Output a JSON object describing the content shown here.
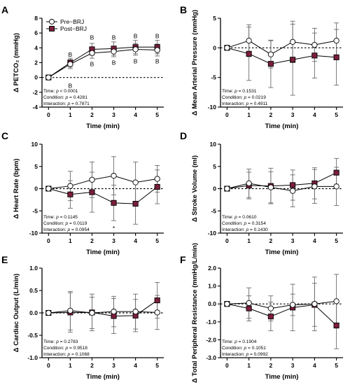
{
  "figure": {
    "colors": {
      "pre_marker_fill": "#ffffff",
      "post_marker_fill": "#7b1e3a",
      "line": "#000000",
      "error_bar": "#6b6b6b"
    },
    "legend": {
      "entries": [
        "Pre−BRJ",
        "Post−BRJ"
      ]
    }
  },
  "chart_data": [
    {
      "panel": "A",
      "type": "line",
      "ylabel": "Δ PETCO₂ (mmHg)",
      "xlabel": "Time (min)",
      "x": [
        0,
        1,
        2,
        3,
        4,
        5
      ],
      "ylim": [
        -4,
        8
      ],
      "yticks": [
        -4,
        -2,
        0,
        2,
        4,
        6,
        8
      ],
      "ytick_labels": [
        "-4",
        "-2",
        "0",
        "2",
        "4",
        "6",
        "8"
      ],
      "series": [
        {
          "name": "Pre−BRJ",
          "values": [
            0,
            1.8,
            3.3,
            3.5,
            3.8,
            3.7
          ],
          "err": [
            0,
            0.6,
            0.7,
            0.7,
            0.8,
            0.8
          ]
        },
        {
          "name": "Post−BRJ",
          "values": [
            0,
            2.0,
            3.8,
            3.9,
            4.1,
            4.1
          ],
          "err": [
            0,
            0.6,
            0.8,
            0.9,
            0.9,
            0.9
          ]
        }
      ],
      "annotations": [
        {
          "text": "B",
          "x": 1,
          "y": 3.1
        },
        {
          "text": "B",
          "x": 1,
          "y": -1.1
        },
        {
          "text": "B",
          "x": 2,
          "y": 5.4
        },
        {
          "text": "B",
          "x": 2,
          "y": 1.8
        },
        {
          "text": "B",
          "x": 3,
          "y": 5.4
        },
        {
          "text": "B",
          "x": 3,
          "y": 2.0
        },
        {
          "text": "B",
          "x": 4,
          "y": 5.6
        },
        {
          "text": "B",
          "x": 4,
          "y": 2.2
        },
        {
          "text": "B",
          "x": 5,
          "y": 5.6
        },
        {
          "text": "B",
          "x": 5,
          "y": 2.2
        }
      ],
      "stats": [
        {
          "label": "Time: ",
          "p": "p",
          "value": " < 0.0001"
        },
        {
          "label": "Condition: ",
          "p": "p",
          "value": " = 0.4281"
        },
        {
          "label": "Interaction: ",
          "p": "p",
          "value": " = 0.7871"
        }
      ]
    },
    {
      "panel": "B",
      "type": "line",
      "ylabel": "Δ Mean Arterial Pressure (mmHg)",
      "xlabel": "Time (min)",
      "x": [
        0,
        1,
        2,
        3,
        4,
        5
      ],
      "ylim": [
        -10,
        5
      ],
      "yticks": [
        -10,
        -5,
        0,
        5
      ],
      "ytick_labels": [
        "-10",
        "-5",
        "0",
        "5"
      ],
      "series": [
        {
          "name": "Pre−BRJ",
          "values": [
            0,
            1.2,
            -1.1,
            1.0,
            0.5,
            1.2
          ],
          "err": [
            0,
            2.7,
            2.3,
            3.5,
            2.8,
            3.0
          ]
        },
        {
          "name": "Post−BRJ",
          "values": [
            0,
            -1.0,
            -2.7,
            -2.0,
            -1.3,
            -1.6
          ],
          "err": [
            0,
            4.5,
            4.0,
            6.0,
            3.8,
            4.7
          ]
        }
      ],
      "annotations": [],
      "stats": [
        {
          "label": "Time: ",
          "p": "p",
          "value": " = 0.1531"
        },
        {
          "label": "Condition: ",
          "p": "p",
          "value": " = 0.0219"
        },
        {
          "label": "Interaction: ",
          "p": "p",
          "value": " = 0.4911"
        }
      ]
    },
    {
      "panel": "C",
      "type": "line",
      "ylabel": "Δ Heart Rate (bpm)",
      "xlabel": "Time (min)",
      "x": [
        0,
        1,
        2,
        3,
        4,
        5
      ],
      "ylim": [
        -10,
        10
      ],
      "yticks": [
        -10,
        -5,
        0,
        5,
        10
      ],
      "ytick_labels": [
        "-10",
        "-5",
        "0",
        "5",
        "10"
      ],
      "series": [
        {
          "name": "Pre−BRJ",
          "values": [
            0,
            0.6,
            2.0,
            2.9,
            1.4,
            2.2
          ],
          "err": [
            0,
            3.3,
            4.0,
            4.3,
            4.6,
            3.0
          ]
        },
        {
          "name": "Post−BRJ",
          "values": [
            0,
            -1.3,
            -0.8,
            -3.2,
            -3.4,
            0.4
          ],
          "err": [
            0,
            3.1,
            4.5,
            4.0,
            4.6,
            3.8
          ]
        }
      ],
      "annotations": [
        {
          "text": "*",
          "x": 3,
          "y": -8.9
        }
      ],
      "stats": [
        {
          "label": "Time: ",
          "p": "p",
          "value": " = 0.1145"
        },
        {
          "label": "Condition: ",
          "p": "p",
          "value": " = 0.0119"
        },
        {
          "label": "Interaction: ",
          "p": "p",
          "value": " = 0.0954"
        }
      ]
    },
    {
      "panel": "D",
      "type": "line",
      "ylabel": "Δ Stroke Volume (ml)",
      "xlabel": "Time (min)",
      "x": [
        0,
        1,
        2,
        3,
        4,
        5
      ],
      "ylim": [
        -10,
        10
      ],
      "yticks": [
        -10,
        -5,
        0,
        5,
        10
      ],
      "ytick_labels": [
        "-10",
        "-5",
        "0",
        "5",
        "10"
      ],
      "series": [
        {
          "name": "Pre−BRJ",
          "values": [
            0,
            1.2,
            0.3,
            -0.5,
            0.5,
            0.5
          ],
          "err": [
            0,
            3.2,
            3.5,
            3.6,
            3.8,
            4.3
          ]
        },
        {
          "name": "Post−BRJ",
          "values": [
            0,
            0.7,
            0.6,
            0.8,
            1.2,
            3.6
          ],
          "err": [
            0,
            3.0,
            4.0,
            3.4,
            3.5,
            3.2
          ]
        }
      ],
      "annotations": [],
      "stats": [
        {
          "label": "Time: ",
          "p": "p",
          "value": " = 0.0610"
        },
        {
          "label": "Condition: ",
          "p": "p",
          "value": " = 0.3154"
        },
        {
          "label": "Interaction: ",
          "p": "p",
          "value": " = 0.1430"
        }
      ]
    },
    {
      "panel": "E",
      "type": "line",
      "ylabel": "Δ Cardiac Output (L/min)",
      "xlabel": "Time (min)",
      "x": [
        0,
        1,
        2,
        3,
        4,
        5
      ],
      "ylim": [
        -1.0,
        1.0
      ],
      "yticks": [
        -1.0,
        -0.5,
        0,
        0.5,
        1.0
      ],
      "ytick_labels": [
        "-1.0",
        "-0.5",
        "0.0",
        "0.5",
        "1.0"
      ],
      "series": [
        {
          "name": "Pre−BRJ",
          "values": [
            0,
            0.05,
            0.0,
            0.03,
            0.03,
            0.01
          ],
          "err": [
            0,
            0.43,
            0.35,
            0.34,
            0.39,
            0.38
          ]
        },
        {
          "name": "Post−BRJ",
          "values": [
            0,
            0.01,
            0.01,
            -0.07,
            -0.06,
            0.28
          ],
          "err": [
            0,
            0.44,
            0.41,
            0.39,
            0.36,
            0.4
          ]
        }
      ],
      "annotations": [],
      "stats": [
        {
          "label": "Time: ",
          "p": "p",
          "value": " = 0.2783"
        },
        {
          "label": "Condition: ",
          "p": "p",
          "value": " = 0.9518"
        },
        {
          "label": "Interaction: ",
          "p": "p",
          "value": " = 0.1068"
        }
      ]
    },
    {
      "panel": "F",
      "type": "line",
      "ylabel": "Δ Total Peripheral Resistance (mmHg/L/min)",
      "xlabel": "Time (min)",
      "x": [
        0,
        1,
        2,
        3,
        4,
        5
      ],
      "ylim": [
        -3.0,
        2.0
      ],
      "yticks": [
        -3.0,
        -2.0,
        -1.0,
        0,
        1.0,
        2.0
      ],
      "ytick_labels": [
        "-3.0",
        "-2.0",
        "-1.0",
        "0.0",
        "1.0",
        "2.0"
      ],
      "series": [
        {
          "name": "Pre−BRJ",
          "values": [
            0,
            0.05,
            -0.25,
            -0.05,
            0.0,
            0.15
          ],
          "err": [
            0,
            0.85,
            0.7,
            0.6,
            1.5,
            1.5
          ]
        },
        {
          "name": "Post−BRJ",
          "values": [
            0,
            -0.25,
            -0.7,
            -0.2,
            -0.05,
            -1.2
          ],
          "err": [
            0,
            0.7,
            0.8,
            1.3,
            1.2,
            1.3
          ]
        }
      ],
      "annotations": [],
      "stats": [
        {
          "label": "Time: ",
          "p": "p",
          "value": " = 0.1904"
        },
        {
          "label": "Condition: ",
          "p": "p",
          "value": " = 0.1051"
        },
        {
          "label": "Interaction: ",
          "p": "p",
          "value": " = 0.0992"
        }
      ]
    }
  ]
}
